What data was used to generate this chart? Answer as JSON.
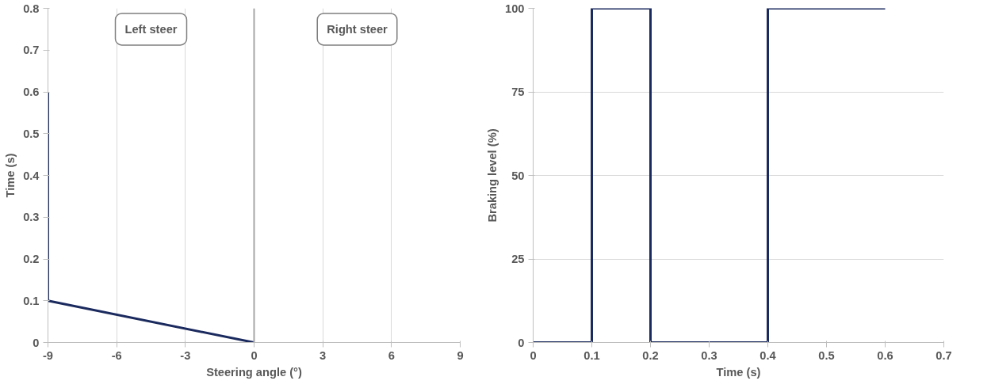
{
  "chart_data": [
    {
      "type": "line",
      "xlabel": "Steering angle (°)",
      "ylabel": "Time (s)",
      "xlim": [
        -9,
        9
      ],
      "xticks": [
        -9,
        -6,
        -3,
        0,
        3,
        6,
        9
      ],
      "ylim": [
        0,
        0.8
      ],
      "yticks": [
        0,
        0.1,
        0.2,
        0.3,
        0.4,
        0.5,
        0.6,
        0.7,
        0.8
      ],
      "grid": "x",
      "series": [
        {
          "color": "#1b2a5e",
          "x": [
            0,
            -9,
            -9
          ],
          "values": [
            0,
            0.1,
            0.6
          ]
        }
      ],
      "ref_lines": [
        {
          "axis": "x",
          "value": 0,
          "color": "#a6a6a6"
        }
      ],
      "annotations": [
        "Left steer",
        "Right steer"
      ]
    },
    {
      "type": "line",
      "xlabel": "Time (s)",
      "ylabel": "Braking level (%)",
      "xlim": [
        0,
        0.7
      ],
      "xticks": [
        0,
        0.1,
        0.2,
        0.3,
        0.4,
        0.5,
        0.6,
        0.7
      ],
      "ylim": [
        0,
        100
      ],
      "yticks": [
        0,
        25,
        50,
        75,
        100
      ],
      "grid": "y",
      "series": [
        {
          "color": "#1b2a5e",
          "x": [
            0,
            0.1,
            0.1,
            0.2,
            0.2,
            0.4,
            0.4,
            0.6
          ],
          "values": [
            0,
            0,
            100,
            100,
            0,
            0,
            100,
            100
          ]
        }
      ]
    }
  ]
}
